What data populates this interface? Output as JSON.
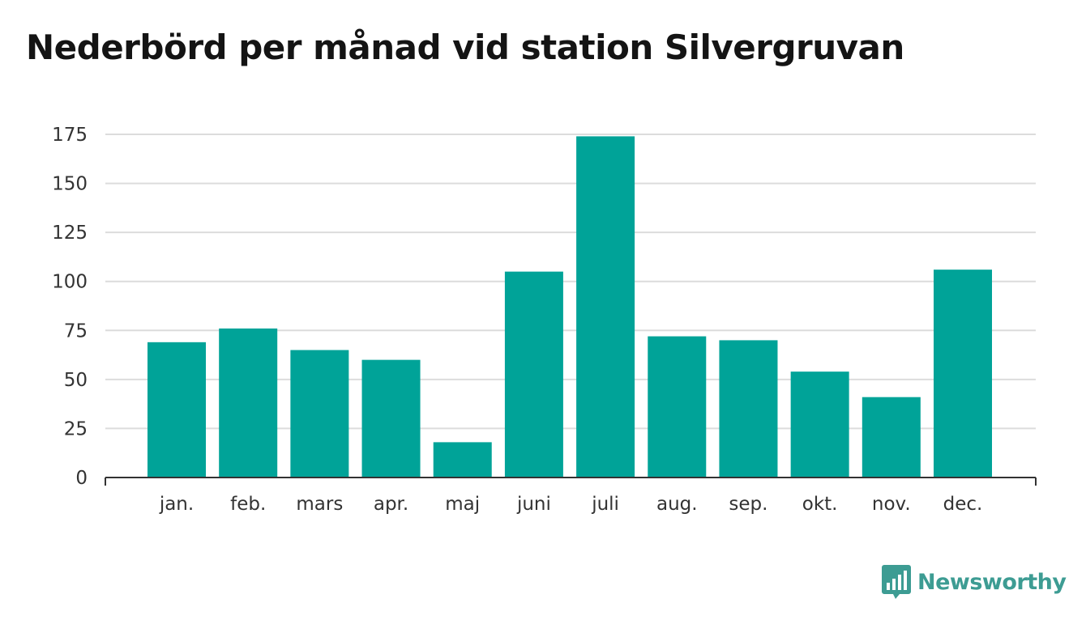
{
  "chart_data": {
    "type": "bar",
    "title": "Nederbörd per månad vid station Silvergruvan",
    "categories": [
      "jan.",
      "feb.",
      "mars",
      "apr.",
      "maj",
      "juni",
      "juli",
      "aug.",
      "sep.",
      "okt.",
      "nov.",
      "dec."
    ],
    "values": [
      69,
      76,
      65,
      60,
      18,
      105,
      174,
      72,
      70,
      54,
      41,
      106
    ],
    "ylim": [
      0,
      175
    ],
    "yticks": [
      0,
      25,
      50,
      75,
      100,
      125,
      150,
      175
    ],
    "grid": true,
    "bar_color": "#00a398"
  },
  "branding": {
    "name": "Newsworthy",
    "color": "#3d9c93",
    "icon": "bar-chart-speech-bubble-icon"
  }
}
